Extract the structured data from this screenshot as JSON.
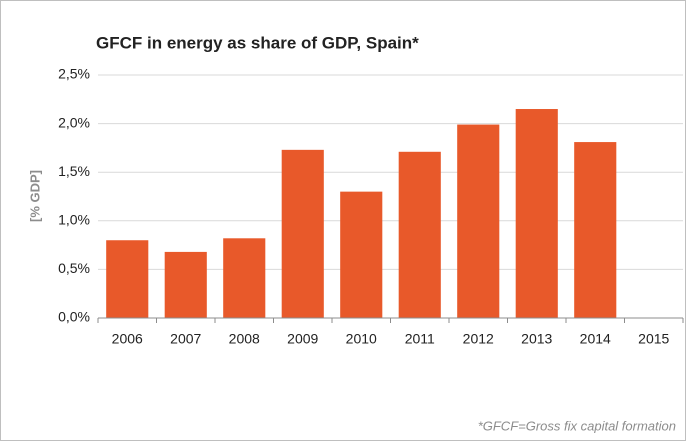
{
  "chart_data": {
    "type": "bar",
    "title": "GFCF in energy as share of GDP, Spain*",
    "y_label": "[% GDP]",
    "categories": [
      "2006",
      "2007",
      "2008",
      "2009",
      "2010",
      "2011",
      "2012",
      "2013",
      "2014",
      "2015"
    ],
    "values": [
      0.8,
      0.68,
      0.82,
      1.73,
      1.3,
      1.71,
      1.99,
      2.15,
      1.81,
      null
    ],
    "color": "#e8592a",
    "ylim": [
      0,
      2.5
    ],
    "yticks": [
      {
        "value": 0,
        "label": "0,0%"
      },
      {
        "value": 0.5,
        "label": "0,5%"
      },
      {
        "value": 1,
        "label": "1,0%"
      },
      {
        "value": 1.5,
        "label": "1,5%"
      },
      {
        "value": 2,
        "label": "2,0%"
      },
      {
        "value": 2.5,
        "label": "2,5%"
      }
    ],
    "grid": true,
    "annotation": "*GFCF=Gross fix capital formation"
  }
}
